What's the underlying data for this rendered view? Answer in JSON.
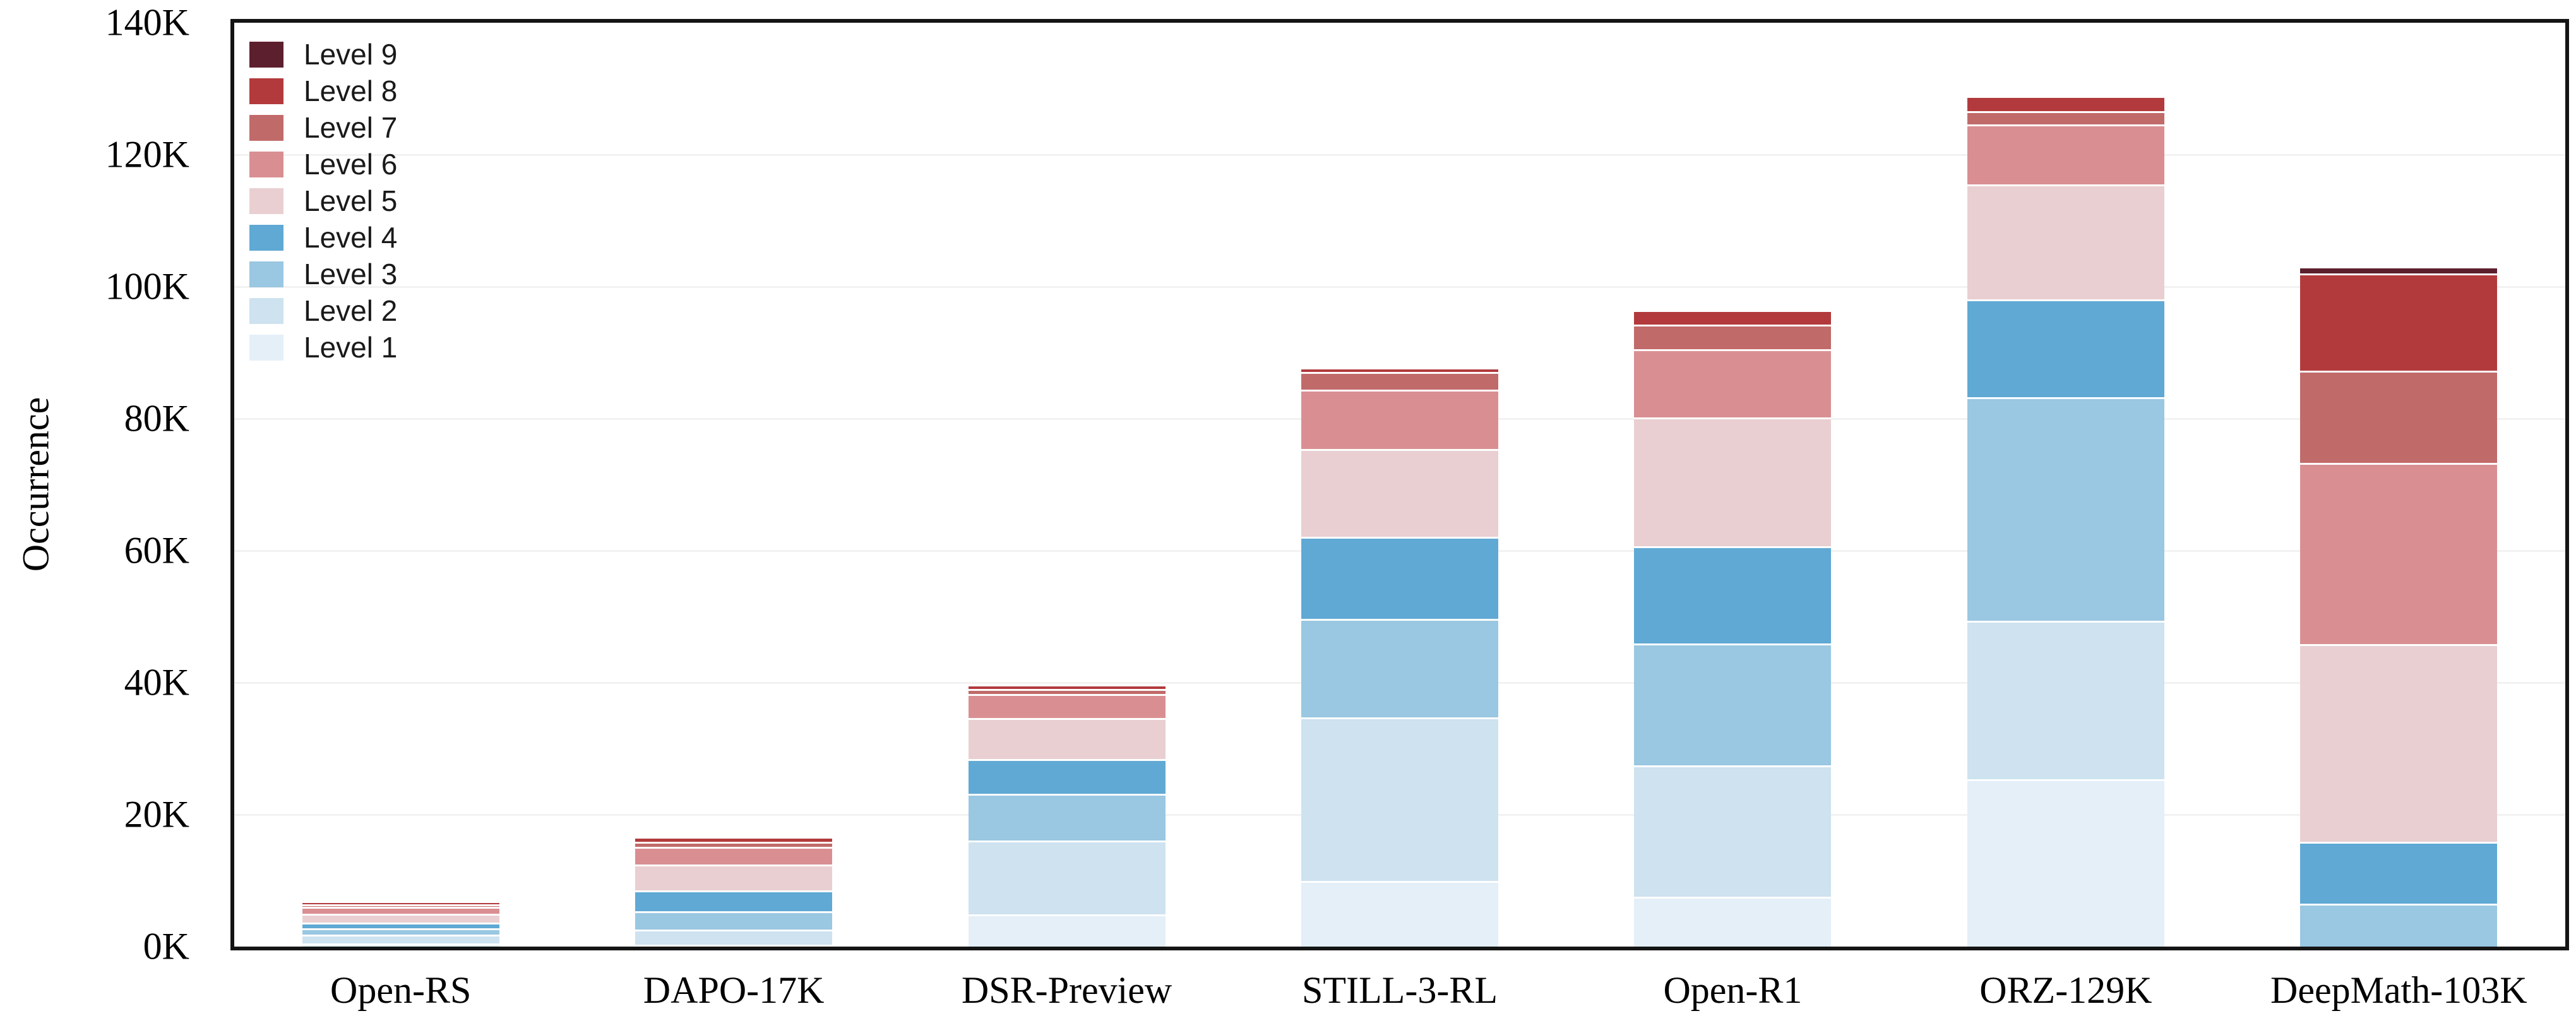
{
  "chart_data": {
    "type": "bar",
    "stacked": true,
    "title": "",
    "xlabel": "",
    "ylabel": "Occurrence",
    "value_unit": "K (thousands of occurrences)",
    "ylim": [
      0,
      140
    ],
    "ytick_values": [
      0,
      20,
      40,
      60,
      80,
      100,
      120,
      140
    ],
    "ytick_labels": [
      "0K",
      "20K",
      "40K",
      "60K",
      "80K",
      "100K",
      "120K",
      "140K"
    ],
    "grid": "horizontal",
    "legend_position": "upper-left",
    "categories": [
      "Open-RS",
      "DAPO-17K",
      "DSR-Preview",
      "STILL-3-RL",
      "Open-R1",
      "ORZ-129K",
      "DeepMath-103K"
    ],
    "series": [
      {
        "name": "Level 1",
        "color": "#e4eff8",
        "values": [
          0.45,
          0.25,
          4.9,
          10.0,
          7.6,
          25.4,
          0
        ]
      },
      {
        "name": "Level 2",
        "color": "#cee2f0",
        "values": [
          1.35,
          2.3,
          11.2,
          24.7,
          19.9,
          24.0,
          0
        ]
      },
      {
        "name": "Level 3",
        "color": "#9ac7e1",
        "values": [
          1.0,
          2.85,
          7.1,
          15.0,
          18.4,
          33.9,
          6.5
        ]
      },
      {
        "name": "Level 4",
        "color": "#60a9d4",
        "values": [
          0.85,
          3.1,
          5.2,
          12.4,
          14.8,
          14.8,
          9.4
        ]
      },
      {
        "name": "Level 5",
        "color": "#e9cfd1",
        "values": [
          1.3,
          3.95,
          6.25,
          13.3,
          19.5,
          17.4,
          29.9
        ]
      },
      {
        "name": "Level 6",
        "color": "#d98f92",
        "values": [
          1.1,
          2.7,
          3.65,
          9.0,
          10.3,
          9.1,
          27.5
        ]
      },
      {
        "name": "Level 7",
        "color": "#c16a6a",
        "values": [
          0.35,
          0.75,
          0.7,
          2.7,
          3.8,
          2.0,
          14.0
        ]
      },
      {
        "name": "Level 8",
        "color": "#b23a3c",
        "values": [
          0.5,
          0.8,
          0.75,
          0.65,
          2.2,
          2.3,
          14.7
        ]
      },
      {
        "name": "Level 9",
        "color": "#5c1f2e",
        "values": [
          0,
          0,
          0,
          0,
          0,
          0,
          1.1
        ]
      }
    ],
    "legend_order": [
      "Level 9",
      "Level 8",
      "Level 7",
      "Level 6",
      "Level 5",
      "Level 4",
      "Level 3",
      "Level 2",
      "Level 1"
    ],
    "totals_approx": [
      6.9,
      16.7,
      39.75,
      87.75,
      96.5,
      128.9,
      103.1
    ]
  },
  "colors": {
    "frame": "#141414",
    "grid": "#f2f2f2",
    "background": "#ffffff",
    "segment_separator": "#ffffff",
    "text": "#000000"
  }
}
